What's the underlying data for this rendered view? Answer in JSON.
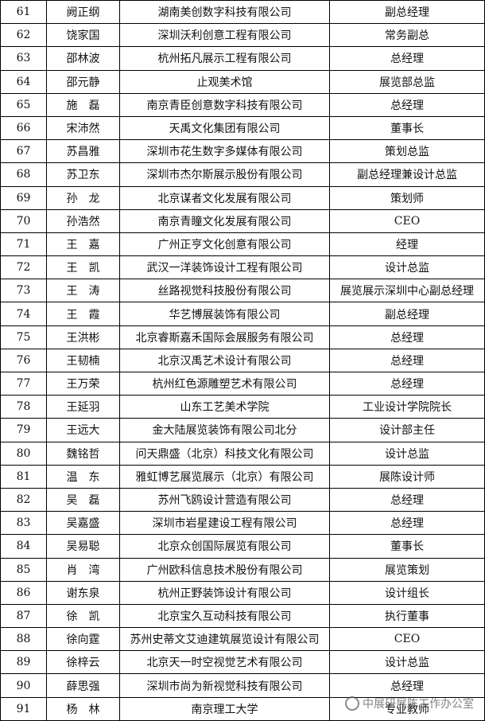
{
  "table": {
    "rows": [
      [
        61,
        "阙正纲",
        "湖南美创数字科技有限公司",
        "副总经理"
      ],
      [
        62,
        "饶家国",
        "深圳沃利创意工程有限公司",
        "常务副总"
      ],
      [
        63,
        "邵林波",
        "杭州拓凡展示工程有限公司",
        "总经理"
      ],
      [
        64,
        "邵元静",
        "止观美术馆",
        "展览部总监"
      ],
      [
        65,
        "施　磊",
        "南京青臣创意数字科技有限公司",
        "总经理"
      ],
      [
        66,
        "宋沛然",
        "天禹文化集团有限公司",
        "董事长"
      ],
      [
        67,
        "苏昌雅",
        "深圳市花生数字多媒体有限公司",
        "策划总监"
      ],
      [
        68,
        "苏卫东",
        "深圳市杰尔斯展示股份有限公司",
        "副总经理兼设计总监"
      ],
      [
        69,
        "孙　龙",
        "北京谋者文化发展有限公司",
        "策划师"
      ],
      [
        70,
        "孙浩然",
        "南京青瞳文化发展有限公司",
        "CEO"
      ],
      [
        71,
        "王　嘉",
        "广州正亨文化创意有限公司",
        "经理"
      ],
      [
        72,
        "王　凯",
        "武汉一洋装饰设计工程有限公司",
        "设计总监"
      ],
      [
        73,
        "王　涛",
        "丝路视觉科技股份有限公司",
        "展览展示深圳中心副总经理"
      ],
      [
        74,
        "王　霞",
        "华艺博展装饰有限公司",
        "副总经理"
      ],
      [
        75,
        "王洪彬",
        "北京睿斯嘉禾国际会展服务有限公司",
        "总经理"
      ],
      [
        76,
        "王韧楠",
        "北京汉禹艺术设计有限公司",
        "总经理"
      ],
      [
        77,
        "王万荣",
        "杭州红色源雕塑艺术有限公司",
        "总经理"
      ],
      [
        78,
        "王延羽",
        "山东工艺美术学院",
        "工业设计学院院长"
      ],
      [
        79,
        "王远大",
        "金大陆展览装饰有限公司北分",
        "设计部主任"
      ],
      [
        80,
        "魏铭哲",
        "问天鼎盛（北京）科技文化有限公司",
        "设计总监"
      ],
      [
        81,
        "温　东",
        "雅虹博艺展览展示（北京）有限公司",
        "展陈设计师"
      ],
      [
        82,
        "吴　磊",
        "苏州飞鸥设计营造有限公司",
        "总经理"
      ],
      [
        83,
        "吴嘉盛",
        "深圳市岩星建设工程有限公司",
        "总经理"
      ],
      [
        84,
        "吴易聪",
        "北京众创国际展览有限公司",
        "董事长"
      ],
      [
        85,
        "肖　湾",
        "广州欧科信息技术股份有限公司",
        "展览策划"
      ],
      [
        86,
        "谢东泉",
        "杭州正野装饰设计有限公司",
        "设计组长"
      ],
      [
        87,
        "徐　凯",
        "北京宝久互动科技有限公司",
        "执行董事"
      ],
      [
        88,
        "徐向霆",
        "苏州史蒂文艾迪建筑展览设计有限公司",
        "CEO"
      ],
      [
        89,
        "徐梓云",
        "北京天一时空视觉艺术有限公司",
        "设计总监"
      ],
      [
        90,
        "薛思强",
        "深圳市尚为新视觉科技有限公司",
        "总经理"
      ],
      [
        91,
        "杨　林",
        "南京理工大学",
        "专业教师"
      ]
    ]
  },
  "watermark": "中展研展陈工作办公室"
}
